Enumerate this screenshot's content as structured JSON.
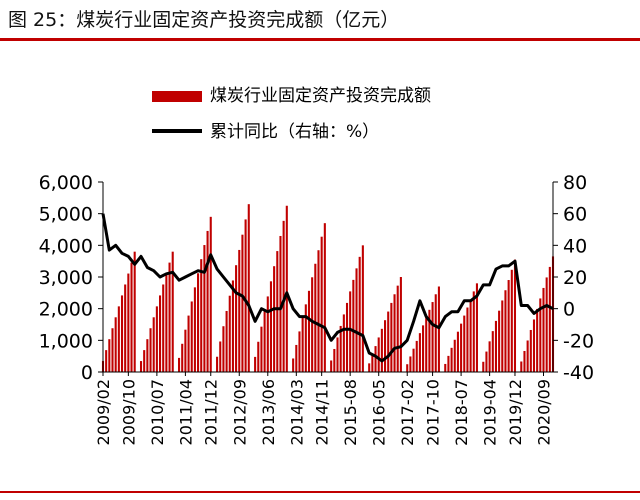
{
  "header": {
    "title": "图 25：煤炭行业固定资产投资完成额（亿元）"
  },
  "chart_data": {
    "type": "bar+line",
    "left_axis": {
      "min": 0,
      "max": 6000,
      "ticks": [
        0,
        1000,
        2000,
        3000,
        4000,
        5000,
        6000
      ],
      "tick_labels": [
        "0",
        "1,000",
        "2,000",
        "3,000",
        "4,000",
        "5,000",
        "6,000"
      ]
    },
    "right_axis": {
      "min": -40,
      "max": 80,
      "ticks": [
        -40,
        -20,
        0,
        20,
        40,
        60,
        80
      ],
      "tick_labels": [
        "-40",
        "-20",
        "0",
        "20",
        "40",
        "60",
        "80"
      ]
    },
    "x_axis": {
      "start": "2009-02",
      "end": "2020-12",
      "tick_labels": [
        "2009/02",
        "2009/10",
        "2010/07",
        "2011/04",
        "2011/12",
        "2012/09",
        "2013/06",
        "2014/03",
        "2014/11",
        "2015-08",
        "2016-05",
        "2017-02",
        "2017-10",
        "2018-07",
        "2019-04",
        "2019/12",
        "2020/09"
      ]
    },
    "grid": false,
    "legend": {
      "placement": "top",
      "entries": [
        "煤炭行业固定资产投资完成额",
        "累计同比（右轴：%）"
      ]
    },
    "series": [
      {
        "name": "煤炭行业固定资产投资完成额",
        "axis": "left",
        "color": "#c00000",
        "kind": "bar",
        "annual": [
          {
            "year": 2009,
            "first_month": 2,
            "dec": 3800
          },
          {
            "year": 2010,
            "first_month": 2,
            "dec": 3800
          },
          {
            "year": 2011,
            "first_month": 2,
            "dec": 4900
          },
          {
            "year": 2012,
            "first_month": 2,
            "dec": 5300
          },
          {
            "year": 2013,
            "first_month": 2,
            "dec": 5250
          },
          {
            "year": 2014,
            "first_month": 2,
            "dec": 4700
          },
          {
            "year": 2015,
            "first_month": 2,
            "dec": 4000
          },
          {
            "year": 2016,
            "first_month": 2,
            "dec": 3000
          },
          {
            "year": 2017,
            "first_month": 2,
            "dec": 2700
          },
          {
            "year": 2018,
            "first_month": 2,
            "dec": 2800
          },
          {
            "year": 2019,
            "first_month": 2,
            "dec": 3550
          },
          {
            "year": 2020,
            "first_month": 2,
            "dec": 3650
          }
        ]
      },
      {
        "name": "累计同比（右轴：%）",
        "axis": "right",
        "color": "#000000",
        "kind": "line",
        "x": [
          "2009-02",
          "2009-04",
          "2009-06",
          "2009-08",
          "2009-10",
          "2009-12",
          "2010-02",
          "2010-04",
          "2010-06",
          "2010-08",
          "2010-10",
          "2010-12",
          "2011-02",
          "2011-04",
          "2011-06",
          "2011-08",
          "2011-10",
          "2011-12",
          "2012-02",
          "2012-04",
          "2012-06",
          "2012-08",
          "2012-10",
          "2012-12",
          "2013-02",
          "2013-04",
          "2013-06",
          "2013-08",
          "2013-10",
          "2013-12",
          "2014-02",
          "2014-04",
          "2014-06",
          "2014-08",
          "2014-10",
          "2014-12",
          "2015-02",
          "2015-04",
          "2015-06",
          "2015-08",
          "2015-10",
          "2015-12",
          "2016-02",
          "2016-04",
          "2016-06",
          "2016-08",
          "2016-10",
          "2016-12",
          "2017-02",
          "2017-04",
          "2017-06",
          "2017-08",
          "2017-10",
          "2017-12",
          "2018-02",
          "2018-04",
          "2018-06",
          "2018-08",
          "2018-10",
          "2018-12",
          "2019-02",
          "2019-04",
          "2019-06",
          "2019-08",
          "2019-10",
          "2019-12",
          "2020-02",
          "2020-04",
          "2020-06",
          "2020-08",
          "2020-10",
          "2020-12"
        ],
        "values": [
          60,
          37,
          40,
          35,
          33,
          28,
          33,
          26,
          24,
          20,
          22,
          23,
          18,
          20,
          22,
          24,
          23,
          34,
          25,
          20,
          15,
          10,
          8,
          2,
          -8,
          0,
          -2,
          0,
          0,
          10,
          0,
          -5,
          -5,
          -8,
          -10,
          -12,
          -20,
          -15,
          -13,
          -13,
          -15,
          -17,
          -28,
          -30,
          -33,
          -30,
          -25,
          -24,
          -20,
          -8,
          5,
          -5,
          -10,
          -12,
          -5,
          -2,
          -2,
          5,
          5,
          8,
          15,
          15,
          25,
          27,
          27,
          30,
          2,
          2,
          -3,
          0,
          2,
          0
        ]
      }
    ]
  }
}
